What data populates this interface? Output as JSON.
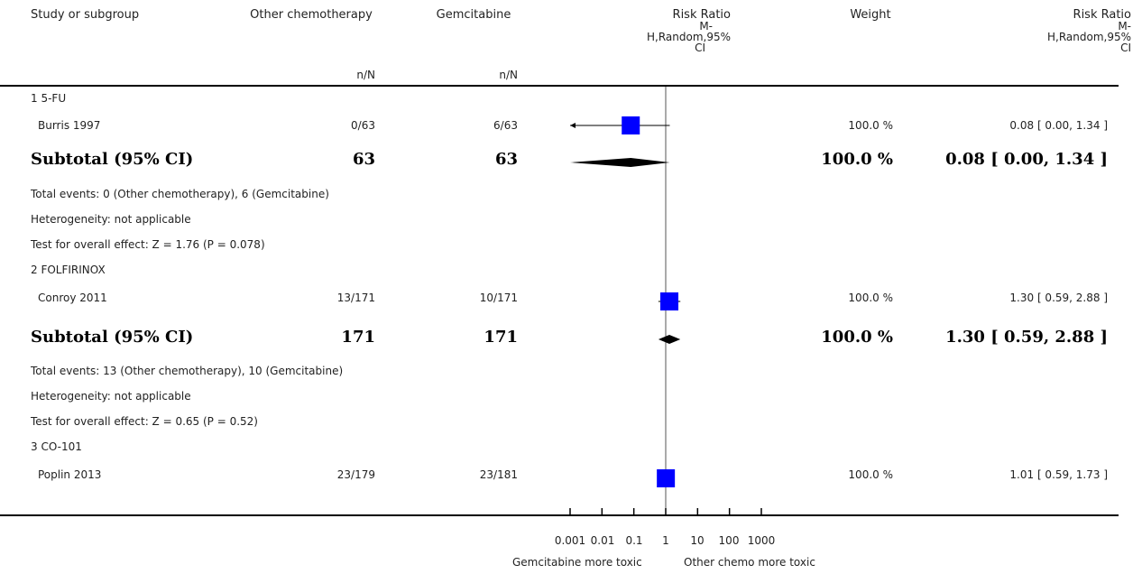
{
  "headers": {
    "study": "Study or subgroup",
    "other": "Other chemotherapy",
    "gem": "Gemcitabine",
    "rr": [
      "Risk Ratio",
      "M-",
      "H,Random,95%",
      "CI"
    ],
    "weight": "Weight",
    "rr_ci": [
      "Risk Ratio",
      "M-",
      "H,Random,95%",
      "CI"
    ],
    "nN": "n/N"
  },
  "rows": [
    {
      "kind": "group",
      "label": "1 5-FU"
    },
    {
      "kind": "study",
      "label": "Burris 1997",
      "other": "0/63",
      "gem": "6/63",
      "weight": "100.0 %",
      "ci_text": "0.08 [ 0.00, 1.34 ]"
    },
    {
      "kind": "subtotal",
      "label": "Subtotal (95% CI)",
      "other": "63",
      "gem": "63",
      "weight": "100.0 %",
      "ci_text": "0.08 [ 0.00, 1.34 ]"
    },
    {
      "kind": "note",
      "label": "Total events: 0 (Other chemotherapy), 6 (Gemcitabine)"
    },
    {
      "kind": "note",
      "label": "Heterogeneity: not applicable"
    },
    {
      "kind": "note",
      "label": "Test for overall effect: Z = 1.76 (P = 0.078)"
    },
    {
      "kind": "group",
      "label": "2 FOLFIRINOX"
    },
    {
      "kind": "study",
      "label": "Conroy 2011",
      "other": "13/171",
      "gem": "10/171",
      "weight": "100.0 %",
      "ci_text": "1.30 [ 0.59, 2.88 ]"
    },
    {
      "kind": "subtotal",
      "label": "Subtotal (95% CI)",
      "other": "171",
      "gem": "171",
      "weight": "100.0 %",
      "ci_text": "1.30 [ 0.59, 2.88 ]"
    },
    {
      "kind": "note",
      "label": "Total events: 13 (Other chemotherapy), 10 (Gemcitabine)"
    },
    {
      "kind": "note",
      "label": "Heterogeneity: not applicable"
    },
    {
      "kind": "note",
      "label": "Test for overall effect: Z = 0.65 (P = 0.52)"
    },
    {
      "kind": "group",
      "label": "3 CO-101"
    },
    {
      "kind": "study",
      "label": "Poplin 2013",
      "other": "23/179",
      "gem": "23/181",
      "weight": "100.0 %",
      "ci_text": "1.01 [ 0.59, 1.73 ]"
    }
  ],
  "axis": {
    "ticks": [
      "0.001",
      "0.01",
      "0.1",
      "1",
      "10",
      "100",
      "1000"
    ],
    "left_label": "Gemcitabine more toxic",
    "right_label": "Other chemo more toxic"
  },
  "chart_data": {
    "type": "forest",
    "scale": "log",
    "xlim": [
      0.001,
      1000
    ],
    "studies": [
      {
        "name": "Burris 1997",
        "rr": 0.08,
        "ci": [
          0.0,
          1.34
        ],
        "weight": 100.0,
        "kind": "study"
      },
      {
        "name": "Subtotal (95% CI)",
        "rr": 0.08,
        "ci": [
          0.0,
          1.34
        ],
        "weight": 100.0,
        "kind": "subtotal"
      },
      {
        "name": "Conroy 2011",
        "rr": 1.3,
        "ci": [
          0.59,
          2.88
        ],
        "weight": 100.0,
        "kind": "study"
      },
      {
        "name": "Subtotal (95% CI)",
        "rr": 1.3,
        "ci": [
          0.59,
          2.88
        ],
        "weight": 100.0,
        "kind": "subtotal"
      },
      {
        "name": "Poplin 2013",
        "rr": 1.01,
        "ci": [
          0.59,
          1.73
        ],
        "weight": 100.0,
        "kind": "study"
      }
    ],
    "colors": {
      "box": "#0000ff",
      "diamond": "#000000",
      "line": "#000000"
    }
  }
}
